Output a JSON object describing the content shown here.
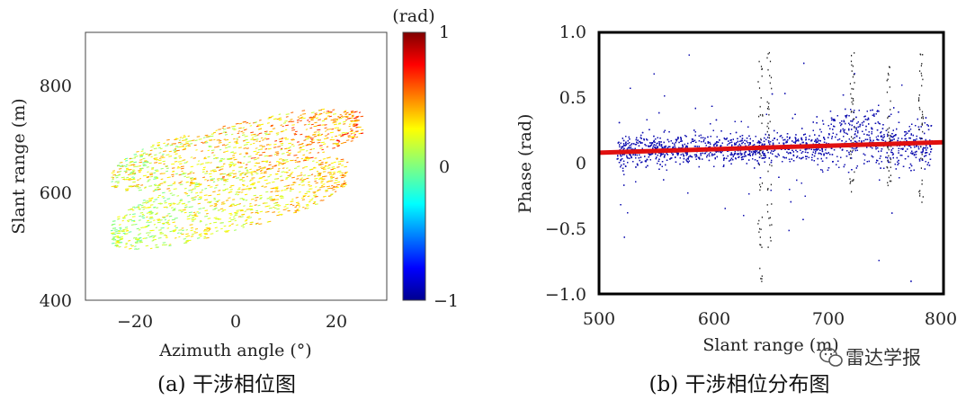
{
  "figure": {
    "watermark_text": "雷达学报",
    "watermark_icon": "wechat-icon"
  },
  "chart_data": [
    {
      "id": "a",
      "type": "heatmap",
      "caption": "(a) 干涉相位图",
      "title": "",
      "xlabel": "Azimuth angle (°)",
      "ylabel": "Slant range (m)",
      "xlim": [
        -30,
        30
      ],
      "ylim": [
        400,
        900
      ],
      "xticks": [
        -20,
        0,
        20
      ],
      "xtick_labels": [
        "−20",
        "0",
        "20"
      ],
      "yticks": [
        400,
        600,
        800
      ],
      "ytick_labels": [
        "400",
        "600",
        "800"
      ],
      "colorbar": {
        "label": "(rad)",
        "range": [
          -1,
          1
        ],
        "ticks": [
          1,
          0,
          -1
        ],
        "tick_labels": [
          "1",
          "0",
          "−1"
        ],
        "colormap": "jet",
        "stops": [
          "#00008f",
          "#0000ff",
          "#00ffff",
          "#80ff80",
          "#ffff00",
          "#ff0000",
          "#800000"
        ]
      },
      "regions": [
        {
          "name": "upper lobe",
          "x_range": [
            -25,
            25
          ],
          "center_slope": 2.0,
          "center_intercept": 680,
          "half_width": 50,
          "phase_range": [
            0.05,
            0.6
          ]
        },
        {
          "name": "lower lobe",
          "x_range": [
            -25,
            22
          ],
          "center_slope": 2.4,
          "center_intercept": 585,
          "half_width": 55,
          "phase_range": [
            0.05,
            0.45
          ]
        }
      ],
      "phase_mean": 0.3
    },
    {
      "id": "b",
      "type": "scatter",
      "caption": "(b) 干涉相位分布图",
      "title": "",
      "xlabel": "Slant range (m)",
      "ylabel": "Phase (rad)",
      "xlim": [
        500,
        800
      ],
      "ylim": [
        -1.0,
        1.0
      ],
      "xticks": [
        500,
        600,
        700,
        800
      ],
      "xtick_labels": [
        "500",
        "600",
        "700",
        "800"
      ],
      "yticks": [
        1.0,
        0.5,
        0,
        -0.5,
        -1.0
      ],
      "ytick_labels": [
        "1.0",
        "0.5",
        "0",
        "−0.5",
        "−1.0"
      ],
      "scatter_color": "#1010b0",
      "x_range": [
        515,
        790
      ],
      "core_band": [
        0.0,
        0.3
      ],
      "outlier_range": [
        -0.95,
        0.9
      ],
      "series": [
        {
          "name": "fit line",
          "type": "line",
          "color": "#e01010",
          "x": [
            500,
            800
          ],
          "y": [
            0.08,
            0.16
          ]
        }
      ]
    }
  ]
}
